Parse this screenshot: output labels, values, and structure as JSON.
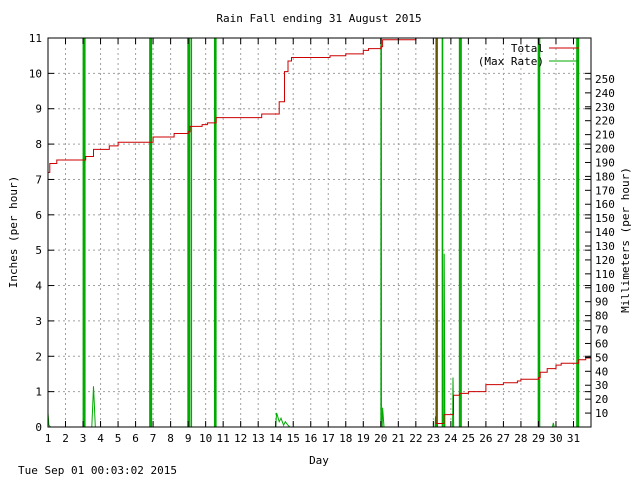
{
  "chart_data": {
    "type": "line",
    "title": "Rain Fall ending 31 August 2015",
    "xlabel": "Day",
    "ylabel": "Inches (per hour)",
    "y2label": "Millimeters (per hour)",
    "xlim": [
      1,
      32
    ],
    "ylim": [
      0,
      11
    ],
    "y2lim": [
      0,
      279.4
    ],
    "x_ticks": [
      "1",
      "2",
      "3",
      "4",
      "5",
      "6",
      "7",
      "8",
      "9",
      "10",
      "11",
      "12",
      "13",
      "14",
      "15",
      "16",
      "17",
      "18",
      "19",
      "20",
      "21",
      "22",
      "23",
      "24",
      "25",
      "26",
      "27",
      "28",
      "29",
      "30",
      "31"
    ],
    "y_ticks": [
      "0",
      "1",
      "2",
      "3",
      "4",
      "5",
      "6",
      "7",
      "8",
      "9",
      "10",
      "11"
    ],
    "y2_ticks": [
      "10",
      "20",
      "30",
      "40",
      "50",
      "60",
      "70",
      "80",
      "90",
      "100",
      "110",
      "120",
      "130",
      "140",
      "150",
      "160",
      "170",
      "180",
      "190",
      "200",
      "210",
      "220",
      "230",
      "240",
      "250"
    ],
    "grid": true,
    "legend_position": "top-right",
    "series": [
      {
        "name": "Total",
        "color": "#cc0000",
        "points": [
          [
            1,
            7.2
          ],
          [
            1.1,
            7.45
          ],
          [
            1.5,
            7.55
          ],
          [
            3.1,
            7.55
          ],
          [
            3.15,
            7.65
          ],
          [
            3.6,
            7.85
          ],
          [
            4.5,
            7.95
          ],
          [
            5.0,
            8.05
          ],
          [
            6.9,
            8.05
          ],
          [
            7.0,
            8.2
          ],
          [
            8.2,
            8.3
          ],
          [
            9.0,
            8.35
          ],
          [
            9.1,
            8.5
          ],
          [
            9.8,
            8.55
          ],
          [
            10.1,
            8.6
          ],
          [
            10.6,
            8.75
          ],
          [
            13.1,
            8.75
          ],
          [
            13.2,
            8.85
          ],
          [
            14.0,
            8.85
          ],
          [
            14.2,
            9.2
          ],
          [
            14.5,
            10.05
          ],
          [
            14.7,
            10.35
          ],
          [
            14.9,
            10.45
          ],
          [
            16.2,
            10.45
          ],
          [
            17.1,
            10.5
          ],
          [
            17.6,
            10.5
          ],
          [
            18.0,
            10.55
          ],
          [
            18.7,
            10.55
          ],
          [
            19.0,
            10.65
          ],
          [
            19.3,
            10.7
          ],
          [
            20.0,
            10.75
          ],
          [
            20.1,
            10.95
          ],
          [
            21.0,
            10.95
          ],
          [
            22.0,
            11.0
          ],
          [
            23.05,
            11.0
          ],
          [
            23.15,
            0.1
          ],
          [
            23.4,
            0.1
          ],
          [
            23.6,
            0.35
          ],
          [
            24.1,
            0.35
          ],
          [
            24.15,
            0.9
          ],
          [
            24.5,
            0.95
          ],
          [
            25.0,
            1.0
          ],
          [
            25.9,
            1.0
          ],
          [
            26.0,
            1.2
          ],
          [
            27.0,
            1.25
          ],
          [
            27.8,
            1.3
          ],
          [
            28.0,
            1.35
          ],
          [
            29.0,
            1.4
          ],
          [
            29.1,
            1.55
          ],
          [
            29.5,
            1.65
          ],
          [
            30.0,
            1.75
          ],
          [
            30.3,
            1.8
          ],
          [
            31.0,
            1.8
          ],
          [
            31.3,
            1.9
          ],
          [
            31.7,
            1.95
          ],
          [
            32.0,
            1.98
          ]
        ]
      },
      {
        "name": "(Max Rate)",
        "color": "#00aa00",
        "spikes": [
          3.02,
          3.1,
          6.82,
          6.9,
          9.0,
          9.06,
          9.18,
          10.52,
          10.58,
          20.02,
          23.22,
          23.52,
          24.5,
          24.58,
          29.0,
          29.06,
          31.2,
          31.28
        ],
        "points": [
          [
            1,
            0.4
          ],
          [
            1.05,
            0.05
          ],
          [
            1.15,
            0
          ],
          [
            3.5,
            0
          ],
          [
            3.55,
            0.6
          ],
          [
            3.6,
            1.15
          ],
          [
            3.65,
            0.6
          ],
          [
            3.7,
            0
          ],
          [
            14.0,
            0
          ],
          [
            14.05,
            0.4
          ],
          [
            14.2,
            0.15
          ],
          [
            14.3,
            0.25
          ],
          [
            14.45,
            0.05
          ],
          [
            14.55,
            0.15
          ],
          [
            14.7,
            0.05
          ],
          [
            14.8,
            0
          ],
          [
            20.08,
            0
          ],
          [
            20.1,
            0.55
          ],
          [
            20.18,
            0
          ],
          [
            23.1,
            0
          ],
          [
            23.12,
            0.3
          ],
          [
            23.16,
            0
          ],
          [
            23.6,
            0
          ],
          [
            23.62,
            4.9
          ],
          [
            23.66,
            0
          ],
          [
            24.1,
            0
          ],
          [
            24.12,
            1.4
          ],
          [
            24.16,
            0
          ],
          [
            29.8,
            0
          ],
          [
            29.85,
            0.12
          ],
          [
            29.9,
            0
          ],
          [
            32,
            0
          ]
        ]
      }
    ]
  },
  "footer": {
    "timestamp": "Tue Sep 01 00:03:02 2015"
  }
}
